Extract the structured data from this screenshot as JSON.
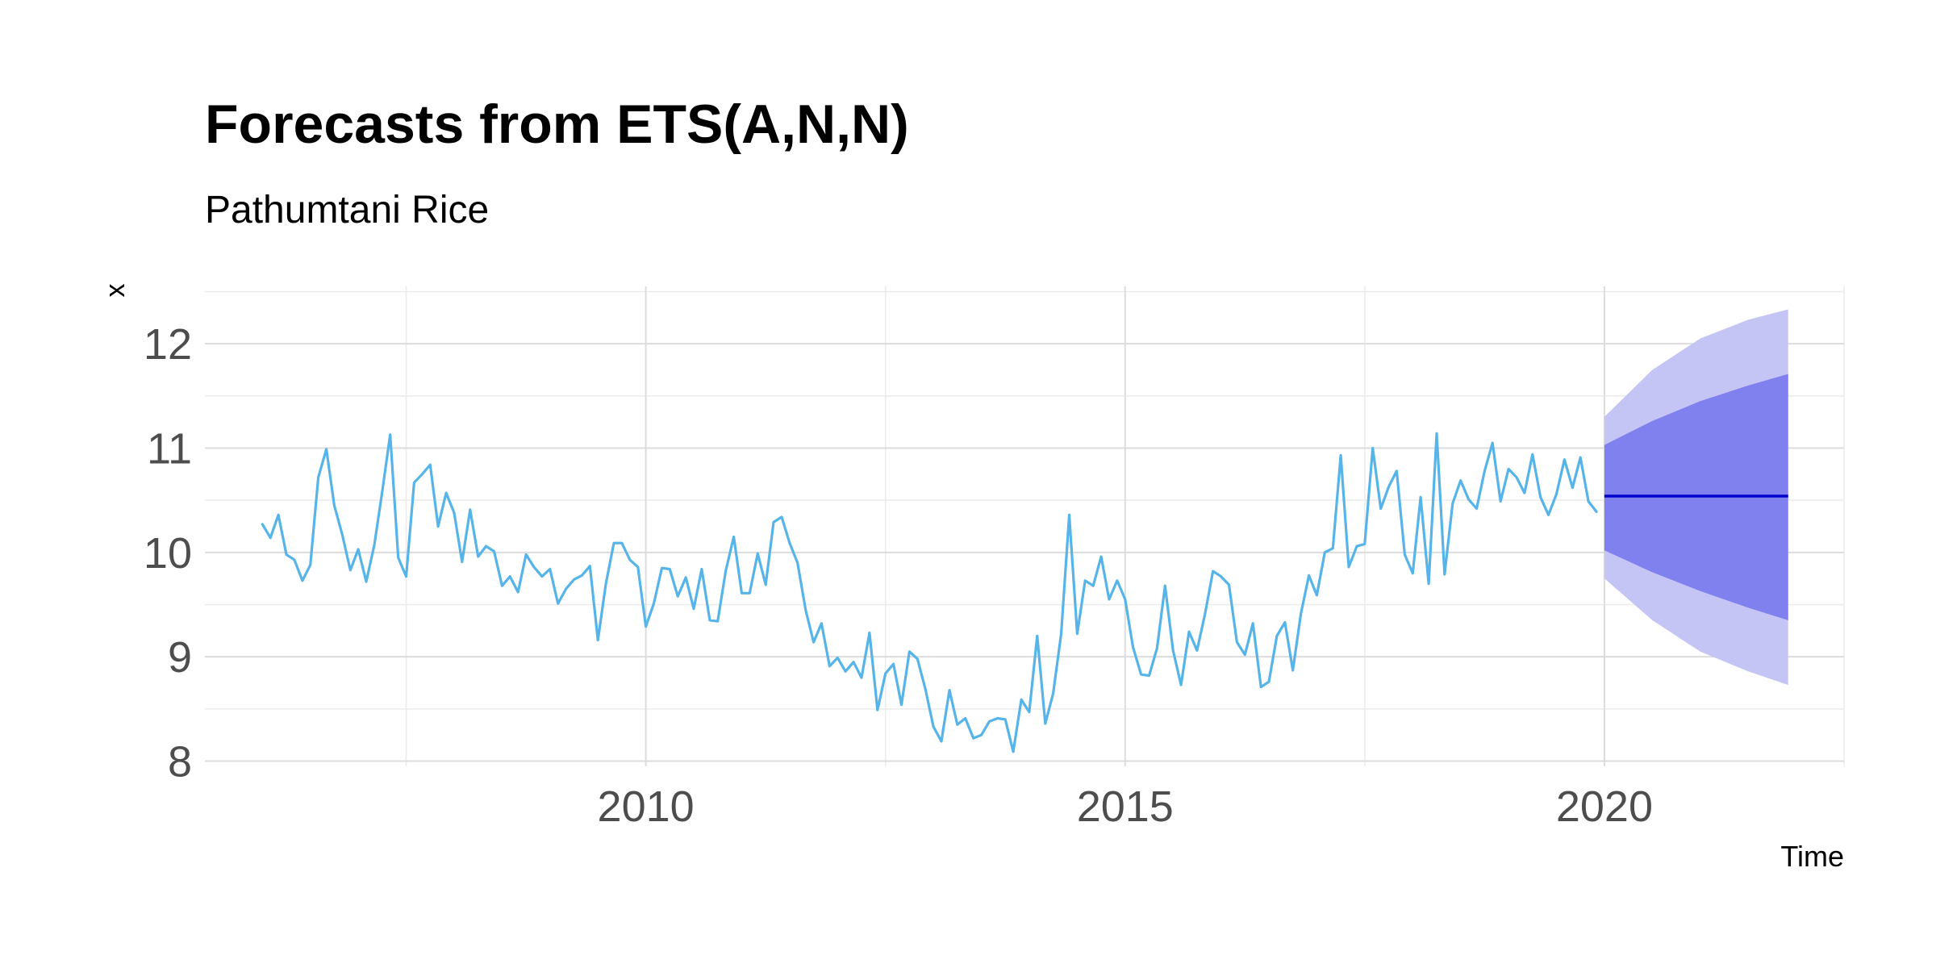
{
  "chart_data": {
    "type": "line",
    "title": "Forecasts from ETS(A,N,N)",
    "subtitle": "Pathumtani Rice",
    "xlabel": "Time",
    "ylabel": "x",
    "xlim": [
      2005.4,
      2022.5
    ],
    "ylim": [
      7.95,
      12.55
    ],
    "x_ticks": [
      2010,
      2015,
      2020
    ],
    "y_ticks": [
      8,
      9,
      10,
      11,
      12
    ],
    "grid": true,
    "legend": "none",
    "colors": {
      "series": "#56B4E9",
      "forecast_mean": "#0000CC",
      "interval_80": "#8080EE",
      "interval_95": "#C5C5F5",
      "grid_major": "#DCDCDC",
      "grid_minor": "#EBEBEB"
    },
    "series": [
      {
        "x": [
          2006.0,
          2006.083,
          2006.167,
          2006.25,
          2006.333,
          2006.417,
          2006.5,
          2006.583,
          2006.667,
          2006.75,
          2006.833,
          2006.917,
          2007.0,
          2007.083,
          2007.167,
          2007.25,
          2007.333,
          2007.417,
          2007.5,
          2007.583,
          2007.667,
          2007.75,
          2007.833,
          2007.917,
          2008.0,
          2008.083,
          2008.167,
          2008.25,
          2008.333,
          2008.417,
          2008.5,
          2008.583,
          2008.667,
          2008.75,
          2008.833,
          2008.917,
          2009.0,
          2009.083,
          2009.167,
          2009.25,
          2009.333,
          2009.417,
          2009.5,
          2009.583,
          2009.667,
          2009.75,
          2009.833,
          2009.917,
          2010.0,
          2010.083,
          2010.167,
          2010.25,
          2010.333,
          2010.417,
          2010.5,
          2010.583,
          2010.667,
          2010.75,
          2010.833,
          2010.917,
          2011.0,
          2011.083,
          2011.167,
          2011.25,
          2011.333,
          2011.417,
          2011.5,
          2011.583,
          2011.667,
          2011.75,
          2011.833,
          2011.917,
          2012.0,
          2012.083,
          2012.167,
          2012.25,
          2012.333,
          2012.417,
          2012.5,
          2012.583,
          2012.667,
          2012.75,
          2012.833,
          2012.917,
          2013.0,
          2013.083,
          2013.167,
          2013.25,
          2013.333,
          2013.417,
          2013.5,
          2013.583,
          2013.667,
          2013.75,
          2013.833,
          2013.917,
          2014.0,
          2014.083,
          2014.167,
          2014.25,
          2014.333,
          2014.417,
          2014.5,
          2014.583,
          2014.667,
          2014.75,
          2014.833,
          2014.917,
          2015.0,
          2015.083,
          2015.167,
          2015.25,
          2015.333,
          2015.417,
          2015.5,
          2015.583,
          2015.667,
          2015.75,
          2015.833,
          2015.917,
          2016.0,
          2016.083,
          2016.167,
          2016.25,
          2016.333,
          2016.417,
          2016.5,
          2016.583,
          2016.667,
          2016.75,
          2016.833,
          2016.917,
          2017.0,
          2017.083,
          2017.167,
          2017.25,
          2017.333,
          2017.417,
          2017.5,
          2017.583,
          2017.667,
          2017.75,
          2017.833,
          2017.917,
          2018.0,
          2018.083,
          2018.167,
          2018.25,
          2018.333,
          2018.417,
          2018.5,
          2018.583,
          2018.667,
          2018.75,
          2018.833,
          2018.917,
          2019.0,
          2019.083,
          2019.167,
          2019.25,
          2019.333,
          2019.417,
          2019.5,
          2019.583,
          2019.667,
          2019.75,
          2019.833,
          2019.917
        ],
        "values": [
          10.27,
          10.14,
          10.36,
          9.98,
          9.93,
          9.73,
          9.88,
          10.72,
          10.99,
          10.45,
          10.17,
          9.83,
          10.03,
          9.72,
          10.07,
          10.58,
          11.13,
          9.95,
          9.77,
          10.67,
          10.75,
          10.84,
          10.25,
          10.57,
          10.38,
          9.91,
          10.41,
          9.96,
          10.06,
          10.01,
          9.68,
          9.77,
          9.62,
          9.98,
          9.86,
          9.77,
          9.84,
          9.51,
          9.65,
          9.74,
          9.78,
          9.87,
          9.16,
          9.7,
          10.09,
          10.09,
          9.93,
          9.86,
          9.29,
          9.51,
          9.85,
          9.84,
          9.58,
          9.76,
          9.46,
          9.84,
          9.35,
          9.34,
          9.82,
          10.15,
          9.61,
          9.61,
          9.99,
          9.69,
          10.29,
          10.34,
          10.09,
          9.9,
          9.45,
          9.14,
          9.32,
          8.91,
          8.99,
          8.86,
          8.95,
          8.8,
          9.23,
          8.49,
          8.84,
          8.93,
          8.54,
          9.05,
          8.98,
          8.69,
          8.33,
          8.19,
          8.68,
          8.35,
          8.41,
          8.22,
          8.25,
          8.38,
          8.41,
          8.4,
          8.09,
          8.59,
          8.47,
          9.2,
          8.36,
          8.65,
          9.22,
          10.36,
          9.22,
          9.73,
          9.68,
          9.96,
          9.55,
          9.73,
          9.55,
          9.09,
          8.83,
          8.82,
          9.08,
          9.68,
          9.06,
          8.73,
          9.24,
          9.06,
          9.41,
          9.82,
          9.77,
          9.69,
          9.14,
          9.02,
          9.32,
          8.71,
          8.76,
          9.2,
          9.33,
          8.87,
          9.41,
          9.78,
          9.59,
          10.0,
          10.04,
          10.93,
          9.86,
          10.06,
          10.08,
          11.0,
          10.42,
          10.63,
          10.78,
          9.98,
          9.8,
          10.53,
          9.7,
          11.14,
          9.79,
          10.47,
          10.69,
          10.51,
          10.42,
          10.78,
          11.05,
          10.49,
          10.8,
          10.72,
          10.57,
          10.94,
          10.53,
          10.36,
          10.56,
          10.89,
          10.62,
          10.91,
          10.49,
          10.39
        ]
      }
    ],
    "forecast": {
      "x": [
        2020.0,
        2020.5,
        2021.0,
        2021.5,
        2021.917
      ],
      "mean": [
        10.54,
        10.54,
        10.54,
        10.54,
        10.54
      ],
      "lower80": [
        10.02,
        9.81,
        9.63,
        9.47,
        9.35
      ],
      "upper80": [
        11.03,
        11.26,
        11.45,
        11.6,
        11.71
      ],
      "lower95": [
        9.75,
        9.35,
        9.05,
        8.86,
        8.73
      ],
      "upper95": [
        11.3,
        11.75,
        12.05,
        12.23,
        12.33
      ]
    }
  }
}
